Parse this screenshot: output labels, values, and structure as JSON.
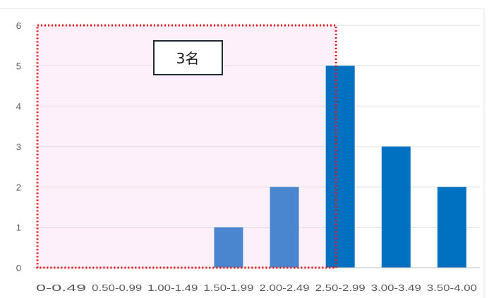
{
  "chart_data": {
    "type": "bar",
    "categories": [
      "0-0.49",
      "0.50-0.99",
      "1.00-1.49",
      "1.50-1.99",
      "2.00-2.49",
      "2.50-2.99",
      "3.00-3.49",
      "3.50-4.00"
    ],
    "values": [
      0,
      0,
      0,
      1,
      2,
      5,
      3,
      2
    ],
    "bar_colors": [
      "#4a86d0",
      "#4a86d0",
      "#4a86d0",
      "#4a86d0",
      "#4a86d0",
      "#0070c0",
      "#0070c0",
      "#0070c0"
    ],
    "title": "",
    "xlabel": "",
    "ylabel": "",
    "ylim": [
      0,
      6
    ],
    "yticks": [
      0,
      1,
      2,
      3,
      4,
      5,
      6
    ],
    "grid": true,
    "grid_color": "#d9d9d9",
    "highlight_region": {
      "from_category": "0-0.49",
      "to_category": "2.50-2.99",
      "fill_color": "#fdf0fb",
      "border_color": "#e8141c",
      "border_style": "dotted"
    },
    "annotation": {
      "text": "3名"
    }
  }
}
